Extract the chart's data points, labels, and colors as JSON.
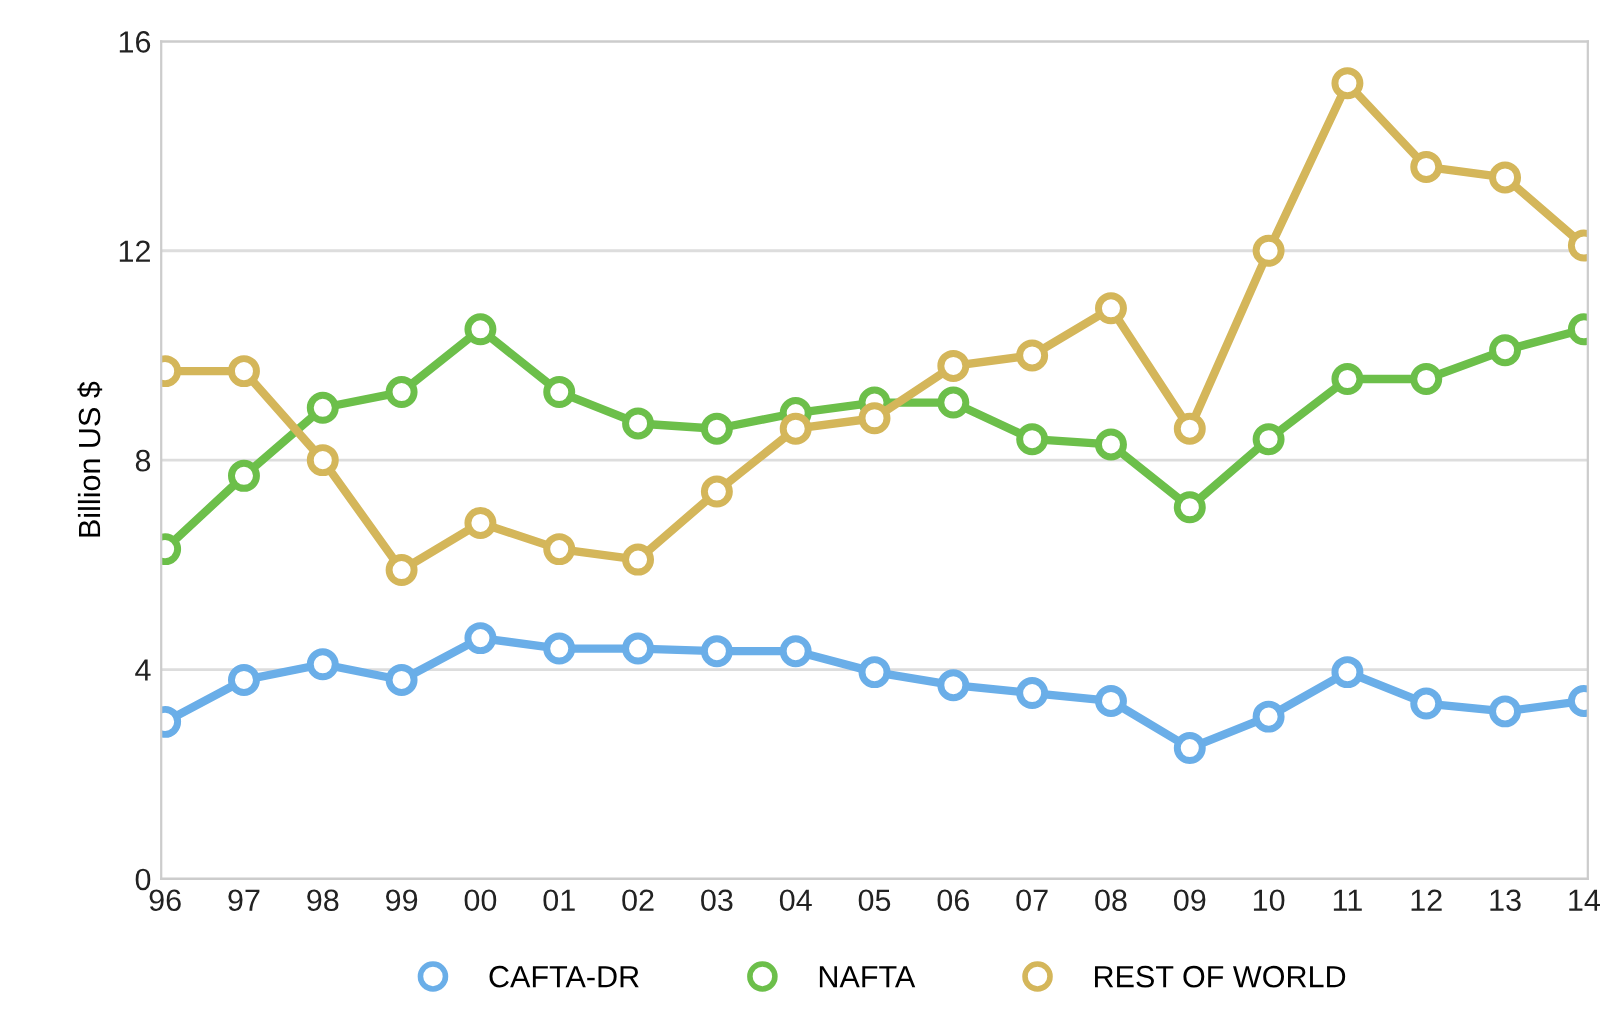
{
  "chart_data": {
    "type": "line",
    "ylabel": "Billion US $",
    "categories": [
      "96",
      "97",
      "98",
      "99",
      "00",
      "01",
      "02",
      "03",
      "04",
      "05",
      "06",
      "07",
      "08",
      "09",
      "10",
      "11",
      "12",
      "13",
      "14"
    ],
    "series": [
      {
        "name": "CAFTA-DR",
        "color": "#6aaee8",
        "values": [
          3.0,
          3.8,
          4.1,
          3.8,
          4.6,
          4.4,
          4.4,
          4.35,
          4.35,
          3.95,
          3.7,
          3.55,
          3.4,
          2.5,
          3.1,
          3.95,
          3.35,
          3.2,
          3.4
        ]
      },
      {
        "name": "NAFTA",
        "color": "#6cbf4a",
        "values": [
          6.3,
          7.7,
          9.0,
          9.3,
          10.5,
          9.3,
          8.7,
          8.6,
          8.9,
          9.1,
          9.1,
          8.4,
          8.3,
          7.1,
          8.4,
          9.55,
          9.55,
          10.1,
          10.5
        ]
      },
      {
        "name": "REST OF WORLD",
        "color": "#d4b65a",
        "values": [
          9.7,
          9.7,
          8.0,
          5.9,
          6.8,
          6.3,
          6.1,
          7.4,
          8.6,
          8.8,
          9.8,
          10.0,
          10.9,
          8.6,
          12.0,
          15.2,
          13.6,
          13.4,
          12.1
        ]
      }
    ],
    "ylim": [
      0,
      16
    ],
    "yticks": [
      0,
      4,
      8,
      12,
      16
    ],
    "grid": "y",
    "legend": "bottom",
    "marker": "circle",
    "line_style": "solid"
  }
}
